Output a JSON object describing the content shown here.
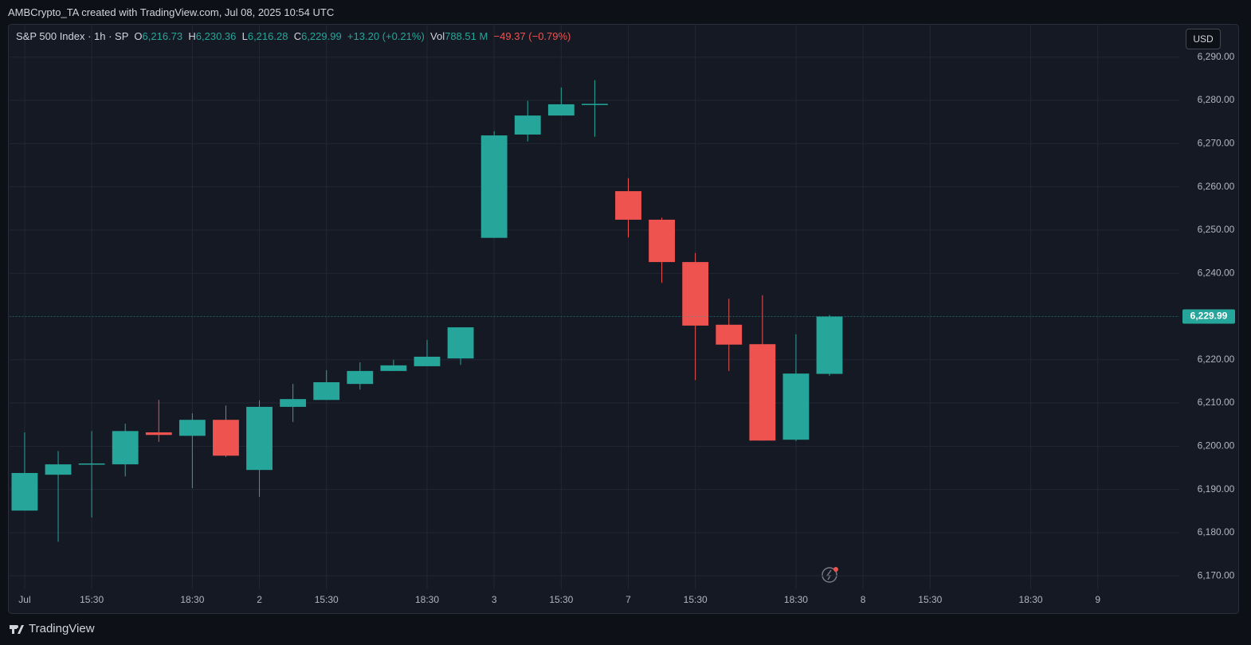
{
  "header": {
    "credit": "AMBCrypto_TA created with TradingView.com, Jul 08, 2025 10:54 UTC",
    "currency": "USD",
    "brand": "TradingView"
  },
  "chart_data": {
    "type": "candlestick",
    "legend": {
      "symbol": "S&P 500 Index · 1h · SP",
      "ohlc": [
        {
          "key": "O",
          "value": "6,216.73"
        },
        {
          "key": "H",
          "value": "6,230.36"
        },
        {
          "key": "L",
          "value": "6,216.28"
        },
        {
          "key": "C",
          "value": "6,229.99"
        }
      ],
      "change": "+13.20 (+0.21%)",
      "volume_key": "Vol",
      "volume": "788.51 M",
      "volume_change": "−49.37 (−0.79%)"
    },
    "x": [
      0,
      1,
      2,
      3,
      4,
      5,
      6,
      7,
      8,
      9,
      10,
      11,
      12,
      13,
      14,
      15,
      16,
      17,
      18,
      19,
      20,
      21,
      22,
      23,
      24
    ],
    "open": [
      6185.1,
      6193.4,
      6195.8,
      6195.8,
      6203.2,
      6202.4,
      6206.1,
      6194.5,
      6209.1,
      6210.7,
      6214.4,
      6217.4,
      6218.5,
      6220.3,
      6248.2,
      6272.1,
      6276.5,
      6279.0,
      6259.0,
      6252.4,
      6242.6,
      6228.1,
      6223.6,
      6201.5,
      6216.73
    ],
    "high": [
      6203.2,
      6198.9,
      6203.5,
      6205.2,
      6210.7,
      6207.6,
      6209.4,
      6210.6,
      6214.4,
      6217.6,
      6219.4,
      6220.0,
      6224.6,
      6227.5,
      6272.9,
      6279.9,
      6283.0,
      6284.7,
      6262.0,
      6252.9,
      6244.7,
      6234.1,
      6234.9,
      6225.9,
      6230.36
    ],
    "low": [
      6185.1,
      6177.9,
      6183.5,
      6193.0,
      6201.0,
      6190.3,
      6197.5,
      6188.3,
      6205.6,
      6210.7,
      6213.1,
      6217.4,
      6218.5,
      6218.8,
      6248.2,
      6270.5,
      6276.5,
      6271.6,
      6248.3,
      6237.8,
      6215.3,
      6217.4,
      6201.3,
      6201.2,
      6216.28
    ],
    "close": [
      6193.8,
      6195.8,
      6196.0,
      6203.5,
      6202.6,
      6206.1,
      6197.8,
      6209.1,
      6210.9,
      6214.8,
      6217.4,
      6218.7,
      6220.7,
      6227.5,
      6271.9,
      6276.5,
      6279.1,
      6279.2,
      6252.4,
      6242.6,
      6227.9,
      6223.5,
      6201.3,
      6216.8,
      6229.99
    ],
    "up_color": "#26a69a",
    "down_color": "#ef5350",
    "last_price_label": "6,229.99",
    "xlim": [
      -0.45,
      34.43
    ],
    "xticks": [
      {
        "value": 0,
        "label": "Jul"
      },
      {
        "value": 2,
        "label": "15:30"
      },
      {
        "value": 5,
        "label": "18:30"
      },
      {
        "value": 7,
        "label": "2"
      },
      {
        "value": 9,
        "label": "15:30"
      },
      {
        "value": 12,
        "label": "18:30"
      },
      {
        "value": 14,
        "label": "3"
      },
      {
        "value": 16,
        "label": "15:30"
      },
      {
        "value": 18,
        "label": "7"
      },
      {
        "value": 20,
        "label": "15:30"
      },
      {
        "value": 23,
        "label": "18:30"
      },
      {
        "value": 25,
        "label": "8"
      },
      {
        "value": 27,
        "label": "15:30"
      },
      {
        "value": 30,
        "label": "18:30"
      },
      {
        "value": 32,
        "label": "9"
      }
    ],
    "ylim": [
      6166.9,
      6297.7
    ],
    "yticks": [
      {
        "value": 6170,
        "label": "6,170.00"
      },
      {
        "value": 6180,
        "label": "6,180.00"
      },
      {
        "value": 6190,
        "label": "6,190.00"
      },
      {
        "value": 6200,
        "label": "6,200.00"
      },
      {
        "value": 6210,
        "label": "6,210.00"
      },
      {
        "value": 6220,
        "label": "6,220.00"
      },
      {
        "value": 6230,
        "label": "6,230.00"
      },
      {
        "value": 6240,
        "label": "6,240.00"
      },
      {
        "value": 6250,
        "label": "6,250.00"
      },
      {
        "value": 6260,
        "label": "6,260.00"
      },
      {
        "value": 6270,
        "label": "6,270.00"
      },
      {
        "value": 6280,
        "label": "6,280.00"
      },
      {
        "value": 6290,
        "label": "6,290.00"
      }
    ],
    "grid": true
  }
}
